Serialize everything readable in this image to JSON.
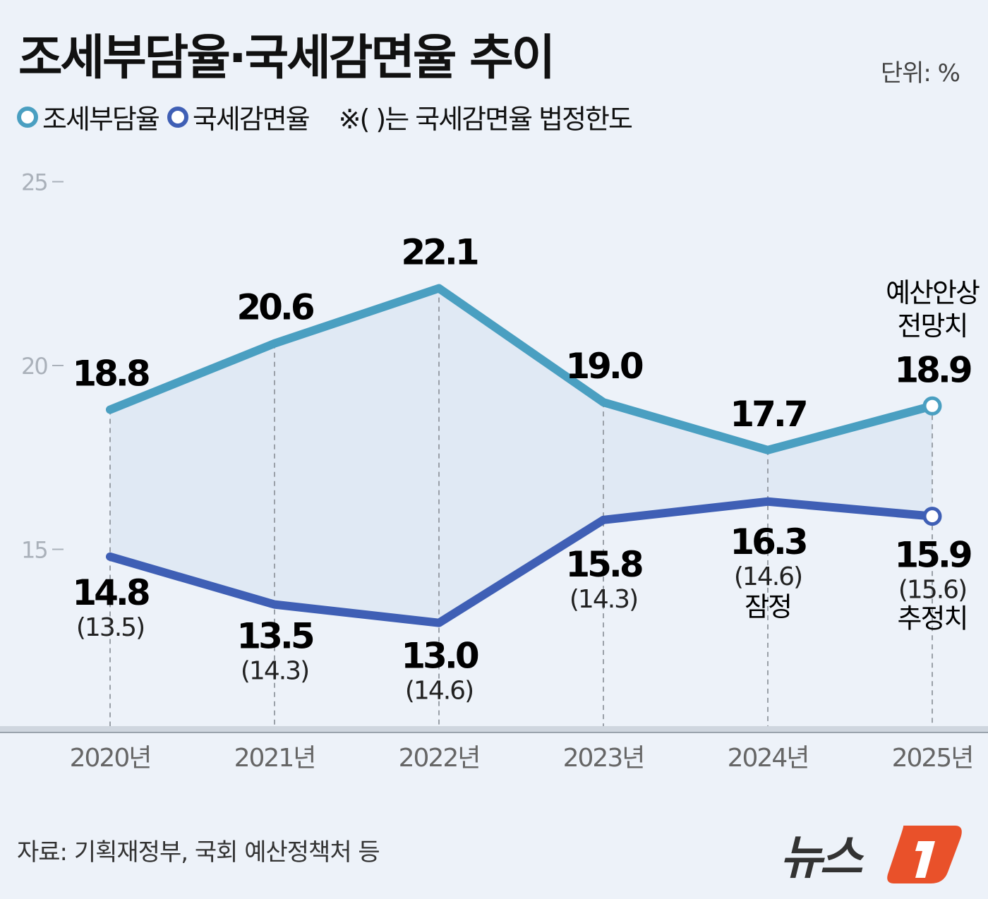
{
  "title": "조세부담율·국세감면율 추이",
  "unit": "단위: %",
  "legend": [
    {
      "label": "조세부담율",
      "color": "#4a9fc1"
    },
    {
      "label": "국세감면율",
      "color": "#3f5fb5"
    }
  ],
  "legend_note": "※( )는 국세감면율 법정한도",
  "source": "자료: 기획재정부, 국회 예산정책처 등",
  "logo_text": "뉴스1",
  "chart_data": {
    "type": "line",
    "categories": [
      "2020년",
      "2021년",
      "2022년",
      "2023년",
      "2024년",
      "2025년"
    ],
    "ylim": [
      10,
      25
    ],
    "yticks": [
      "15",
      "20",
      "25"
    ],
    "series": [
      {
        "name": "조세부담율",
        "color": "#4a9fc1",
        "values": [
          18.8,
          20.6,
          22.1,
          19.0,
          17.7,
          18.9
        ],
        "labels": [
          "18.8",
          "20.6",
          "22.1",
          "19.0",
          "17.7",
          "18.9"
        ]
      },
      {
        "name": "국세감면율",
        "color": "#3f5fb5",
        "values": [
          14.8,
          13.5,
          13.0,
          15.8,
          16.3,
          15.9
        ],
        "labels": [
          "14.8",
          "13.5",
          "13.0",
          "15.8",
          "16.3",
          "15.9"
        ],
        "legal_limit": [
          "(13.5)",
          "(14.3)",
          "(14.6)",
          "(14.3)",
          "(14.6)",
          "(15.6)"
        ]
      }
    ],
    "annotations": {
      "2024_note": "잠정",
      "2025_note": "추정치",
      "2025_top_line1": "예산안상",
      "2025_top_line2": "전망치"
    },
    "grid": false,
    "area_fill": "#e0e9f4"
  }
}
